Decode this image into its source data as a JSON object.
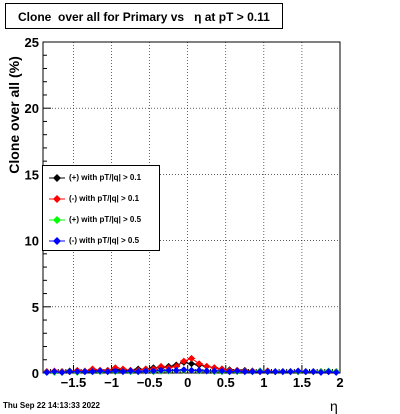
{
  "title": "Clone  over all for Primary vs   η at pT > 0.11",
  "date_stamp": "Thu Sep 22 14:13:33 2022",
  "chart_data": {
    "type": "scatter",
    "title": "Clone  over all for Primary vs   η at pT > 0.11",
    "xlabel": "η",
    "ylabel": "Clone  over all (%)",
    "xlim": [
      -1.9,
      2.0
    ],
    "ylim": [
      0,
      25
    ],
    "xticks": [
      -1.5,
      -1,
      -0.5,
      0,
      0.5,
      1,
      1.5,
      2
    ],
    "xtick_labels": [
      "−1.5",
      "−1",
      "−0.5",
      "0",
      "0.5",
      "1",
      "1.5",
      "2"
    ],
    "yticks": [
      0,
      5,
      10,
      15,
      20,
      25
    ],
    "ytick_labels": [
      "0",
      "5",
      "10",
      "15",
      "20",
      "25"
    ],
    "grid": true,
    "legend_position": "middle-left",
    "series": [
      {
        "name": "(+) with pT/|q| > 0.1",
        "color": "#000000",
        "x": [
          -1.85,
          -1.75,
          -1.65,
          -1.55,
          -1.45,
          -1.35,
          -1.25,
          -1.15,
          -1.05,
          -0.95,
          -0.85,
          -0.75,
          -0.65,
          -0.55,
          -0.45,
          -0.35,
          -0.25,
          -0.15,
          -0.05,
          0.05,
          0.15,
          0.25,
          0.35,
          0.45,
          0.55,
          0.65,
          0.75,
          0.85,
          0.95,
          1.05,
          1.15,
          1.25,
          1.35,
          1.45,
          1.55,
          1.65,
          1.75,
          1.85,
          1.95
        ],
        "y": [
          0.1,
          0.1,
          0.1,
          0.15,
          0.15,
          0.1,
          0.2,
          0.2,
          0.2,
          0.25,
          0.2,
          0.2,
          0.3,
          0.3,
          0.4,
          0.4,
          0.5,
          0.6,
          0.8,
          0.7,
          0.6,
          0.5,
          0.4,
          0.3,
          0.25,
          0.2,
          0.2,
          0.15,
          0.15,
          0.15,
          0.1,
          0.1,
          0.1,
          0.1,
          0.1,
          0.1,
          0.1,
          0.1,
          0.1
        ]
      },
      {
        "name": "(-) with pT/|q| > 0.1",
        "color": "#ff0000",
        "x": [
          -1.85,
          -1.75,
          -1.65,
          -1.55,
          -1.45,
          -1.35,
          -1.25,
          -1.15,
          -1.05,
          -0.95,
          -0.85,
          -0.75,
          -0.65,
          -0.55,
          -0.45,
          -0.35,
          -0.25,
          -0.15,
          -0.05,
          0.05,
          0.15,
          0.25,
          0.35,
          0.45,
          0.55,
          0.65,
          0.75,
          0.85,
          0.95,
          1.05,
          1.15,
          1.25,
          1.35,
          1.45,
          1.55,
          1.65,
          1.75,
          1.85,
          1.95
        ],
        "y": [
          0.1,
          0.15,
          0.1,
          0.1,
          0.2,
          0.15,
          0.3,
          0.2,
          0.2,
          0.4,
          0.3,
          0.2,
          0.2,
          0.3,
          0.3,
          0.5,
          0.4,
          0.5,
          0.9,
          1.1,
          0.7,
          0.5,
          0.4,
          0.3,
          0.2,
          0.2,
          0.15,
          0.15,
          0.1,
          0.15,
          0.1,
          0.1,
          0.1,
          0.1,
          0.1,
          0.1,
          0.1,
          0.1,
          0.1
        ]
      },
      {
        "name": "(+) with pT/|q| > 0.5",
        "color": "#00ff00",
        "x": [
          -1.85,
          -1.75,
          -1.65,
          -1.55,
          -1.45,
          -1.35,
          -1.25,
          -1.15,
          -1.05,
          -0.95,
          -0.85,
          -0.75,
          -0.65,
          -0.55,
          -0.45,
          -0.35,
          -0.25,
          -0.15,
          -0.05,
          0.05,
          0.15,
          0.25,
          0.35,
          0.45,
          0.55,
          0.65,
          0.75,
          0.85,
          0.95,
          1.05,
          1.15,
          1.25,
          1.35,
          1.45,
          1.55,
          1.65,
          1.75,
          1.85,
          1.95
        ],
        "y": [
          0.05,
          0.05,
          0.05,
          0.1,
          0.05,
          0.1,
          0.1,
          0.1,
          0.1,
          0.1,
          0.1,
          0.1,
          0.1,
          0.15,
          0.1,
          0.15,
          0.15,
          0.2,
          0.2,
          0.2,
          0.15,
          0.15,
          0.1,
          0.1,
          0.1,
          0.1,
          0.1,
          0.1,
          0.15,
          0.1,
          0.1,
          0.1,
          0.1,
          0.1,
          0.1,
          0.1,
          0.1,
          0.15,
          0.1
        ]
      },
      {
        "name": "(-) with pT/|q| > 0.5",
        "color": "#0000ff",
        "x": [
          -1.85,
          -1.75,
          -1.65,
          -1.55,
          -1.45,
          -1.35,
          -1.25,
          -1.15,
          -1.05,
          -0.95,
          -0.85,
          -0.75,
          -0.65,
          -0.55,
          -0.45,
          -0.35,
          -0.25,
          -0.15,
          -0.05,
          0.05,
          0.15,
          0.25,
          0.35,
          0.45,
          0.55,
          0.65,
          0.75,
          0.85,
          0.95,
          1.05,
          1.15,
          1.25,
          1.35,
          1.45,
          1.55,
          1.65,
          1.75,
          1.85,
          1.95
        ],
        "y": [
          0.05,
          0.1,
          0.05,
          0.1,
          0.1,
          0.1,
          0.1,
          0.15,
          0.1,
          0.15,
          0.1,
          0.15,
          0.1,
          0.15,
          0.15,
          0.2,
          0.2,
          0.2,
          0.25,
          0.2,
          0.2,
          0.15,
          0.15,
          0.15,
          0.1,
          0.15,
          0.1,
          0.1,
          0.1,
          0.1,
          0.1,
          0.1,
          0.1,
          0.15,
          0.1,
          0.1,
          0.05,
          0.1,
          0.05
        ]
      }
    ]
  }
}
